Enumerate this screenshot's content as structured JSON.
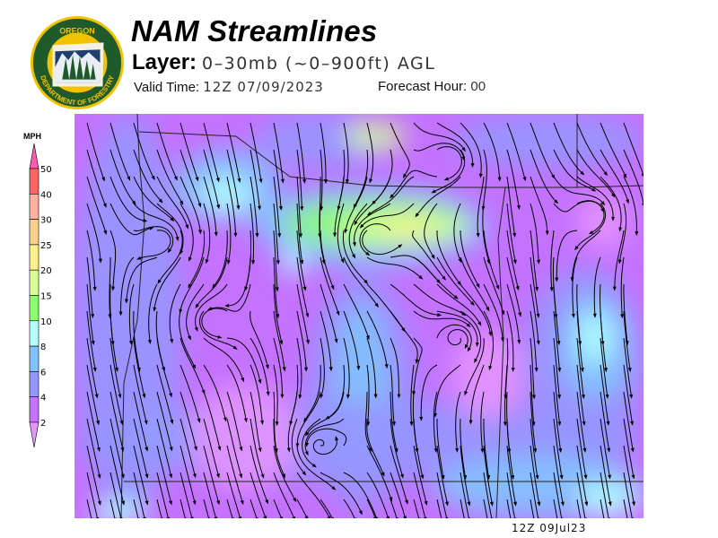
{
  "header": {
    "title": "NAM Streamlines",
    "layer_label": "Layer:",
    "layer_value": "0–30mb (~0–900ft) AGL",
    "valid_label": "Valid Time:",
    "valid_value": "12Z 07/09/2023",
    "forecast_label": "Forecast Hour:",
    "forecast_value": "00"
  },
  "logo": {
    "top_text": "OREGON",
    "bottom_text": "DEPARTMENT OF FORESTRY"
  },
  "legend": {
    "unit": "MPH",
    "levels": [
      "50",
      "40",
      "30",
      "25",
      "20",
      "15",
      "10",
      "8",
      "6",
      "4",
      "2"
    ],
    "colors": [
      "#ff6464",
      "#ffb0a0",
      "#ffd08c",
      "#fff08c",
      "#d8ff96",
      "#8cff6e",
      "#b4ffff",
      "#82c3ff",
      "#9696ff",
      "#c472ff"
    ],
    "over_color": "#ff5ab0",
    "under_color": "#e494ff"
  },
  "map": {
    "stamp": "12Z 09Jul23"
  }
}
